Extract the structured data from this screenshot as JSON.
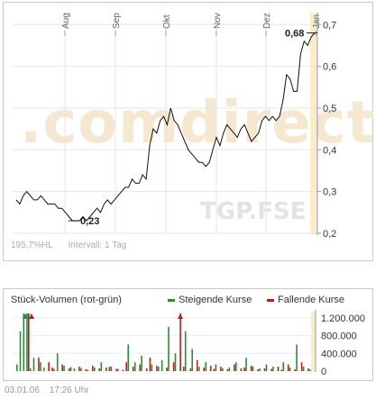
{
  "chart_data": [
    {
      "type": "line",
      "title": "",
      "x_ticks": [
        "Aug",
        "Sep",
        "Okt",
        "Nov",
        "Dez",
        "Jan"
      ],
      "y_ticks": [
        "0,2",
        "0,3",
        "0,4",
        "0,5",
        "0,6",
        "0,7"
      ],
      "ylim": [
        0.2,
        0.72
      ],
      "series": [
        {
          "values": [
            0.28,
            0.27,
            0.29,
            0.3,
            0.29,
            0.28,
            0.28,
            0.29,
            0.28,
            0.27,
            0.27,
            0.27,
            0.26,
            0.26,
            0.25,
            0.24,
            0.23,
            0.23,
            0.23,
            0.24,
            0.23,
            0.24,
            0.25,
            0.26,
            0.25,
            0.27,
            0.28,
            0.27,
            0.28,
            0.29,
            0.3,
            0.31,
            0.31,
            0.33,
            0.32,
            0.32,
            0.34,
            0.33,
            0.41,
            0.45,
            0.44,
            0.47,
            0.48,
            0.46,
            0.5,
            0.47,
            0.46,
            0.44,
            0.42,
            0.4,
            0.39,
            0.38,
            0.37,
            0.37,
            0.36,
            0.37,
            0.4,
            0.43,
            0.41,
            0.44,
            0.46,
            0.45,
            0.44,
            0.43,
            0.45,
            0.46,
            0.44,
            0.42,
            0.43,
            0.44,
            0.47,
            0.48,
            0.47,
            0.48,
            0.47,
            0.48,
            0.52,
            0.58,
            0.57,
            0.54,
            0.54,
            0.63,
            0.66,
            0.65,
            0.67,
            0.68
          ]
        }
      ],
      "annotations": [
        {
          "label": "0,68",
          "value": 0.68
        },
        {
          "label": "0,23",
          "value": 0.23
        }
      ],
      "grid": true
    },
    {
      "type": "bar",
      "title": "Stück-Volumen (rot-grün)",
      "y_ticks": [
        "0",
        "400.000",
        "800.000",
        "1.200.000"
      ],
      "ylim": [
        0,
        1300000
      ],
      "series": [
        {
          "name": "Steigende Kurse",
          "color": "#2e8b3a",
          "values": [
            150000,
            900000,
            1300000,
            1300000,
            60000,
            300000,
            0,
            200000,
            80000,
            0,
            0,
            50000,
            400000,
            0,
            120000,
            0,
            90000,
            60000,
            0,
            70000,
            0,
            30000,
            0,
            80000,
            0,
            200000,
            0,
            0,
            100000,
            0,
            50000,
            0,
            0,
            600000,
            0,
            200000,
            0,
            350000,
            0,
            0,
            150000,
            0,
            100000,
            250000,
            0,
            1000000,
            0,
            400000,
            0,
            0,
            900000,
            0,
            500000,
            0,
            100000,
            0,
            200000,
            0,
            0,
            150000,
            0,
            60000,
            0,
            80000,
            0,
            200000,
            0,
            0,
            300000,
            0,
            100000,
            0,
            60000,
            0,
            150000,
            0,
            100000,
            0,
            0,
            200000,
            0,
            80000,
            0,
            600000,
            0,
            100000,
            0,
            30000
          ]
        },
        {
          "name": "Fallende Kurse",
          "color": "#b22222",
          "values": [
            0,
            0,
            0,
            1300000,
            0,
            0,
            300000,
            0,
            0,
            200000,
            80000,
            0,
            0,
            150000,
            0,
            60000,
            0,
            0,
            100000,
            0,
            40000,
            0,
            120000,
            0,
            60000,
            0,
            80000,
            100000,
            0,
            50000,
            0,
            30000,
            200000,
            0,
            100000,
            0,
            150000,
            0,
            60000,
            300000,
            0,
            120000,
            0,
            0,
            80000,
            0,
            200000,
            0,
            1300000,
            100000,
            0,
            60000,
            0,
            250000,
            0,
            80000,
            0,
            120000,
            50000,
            0,
            100000,
            0,
            40000,
            0,
            150000,
            0,
            60000,
            80000,
            0,
            120000,
            0,
            40000,
            0,
            60000,
            0,
            50000,
            0,
            100000,
            30000,
            0,
            150000,
            0,
            40000,
            0,
            200000,
            0,
            60000,
            0
          ]
        }
      ]
    }
  ],
  "price_info": {
    "range": "195,7%HL",
    "interval": "Intervall: 1 Tag"
  },
  "watermark": {
    "brand": ".comdirect",
    "symbol": "TGP.FSE"
  },
  "footer": {
    "date": "03.01.06",
    "time": "17:26 Uhr"
  }
}
